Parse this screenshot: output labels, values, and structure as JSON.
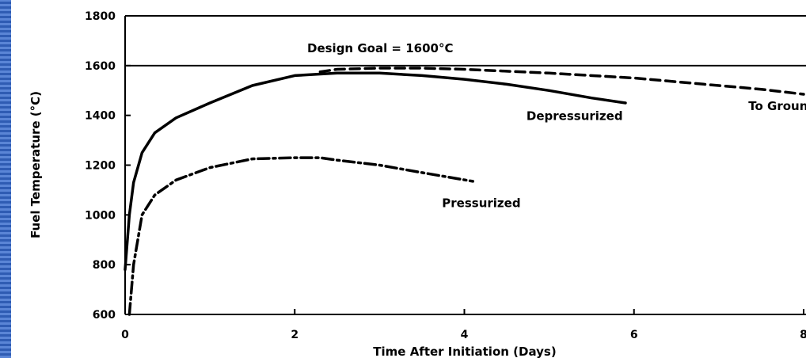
{
  "chart_data": {
    "type": "line",
    "title": "",
    "xlabel": "Time After Initiation (Days)",
    "ylabel": "Fuel Temperature (°C)",
    "xlim": [
      0,
      8
    ],
    "ylim": [
      600,
      1800
    ],
    "x_ticks": [
      0,
      2,
      4,
      6,
      8
    ],
    "y_ticks": [
      600,
      800,
      1000,
      1200,
      1400,
      1600,
      1800
    ],
    "grid": false,
    "reference_line": {
      "label": "Design Goal = 1600°C",
      "y": 1600
    },
    "series": [
      {
        "name": "Depressurized",
        "style": "solid",
        "x": [
          0,
          0.05,
          0.1,
          0.2,
          0.35,
          0.6,
          1.0,
          1.5,
          2.0,
          2.5,
          3.0,
          3.5,
          4.0,
          4.5,
          5.0,
          5.5,
          5.9
        ],
        "y": [
          780,
          1000,
          1130,
          1250,
          1330,
          1390,
          1450,
          1520,
          1560,
          1570,
          1570,
          1560,
          1545,
          1525,
          1500,
          1470,
          1450
        ]
      },
      {
        "name": "To Ground",
        "style": "dashed",
        "x": [
          2.3,
          2.5,
          3.0,
          3.5,
          4.0,
          5.0,
          6.0,
          7.0,
          7.5,
          8.0
        ],
        "y": [
          1575,
          1585,
          1590,
          1590,
          1585,
          1570,
          1550,
          1520,
          1505,
          1485
        ]
      },
      {
        "name": "Pressurized",
        "style": "dash-dot",
        "x": [
          0.05,
          0.1,
          0.2,
          0.35,
          0.6,
          1.0,
          1.5,
          2.0,
          2.3,
          2.5,
          3.0,
          3.5,
          4.1
        ],
        "y": [
          600,
          800,
          1000,
          1080,
          1140,
          1190,
          1225,
          1230,
          1230,
          1220,
          1200,
          1170,
          1135
        ]
      }
    ],
    "annotations": [
      {
        "text": "Depressurized",
        "x": 5.3,
        "y": 1400
      },
      {
        "text": "To Ground",
        "x": 7.75,
        "y": 1440
      },
      {
        "text": "Pressurized",
        "x": 4.2,
        "y": 1050
      }
    ],
    "colors": {
      "line": "#000000",
      "frame_background": "#3b6bc4",
      "plot_background": "#ffffff"
    }
  }
}
